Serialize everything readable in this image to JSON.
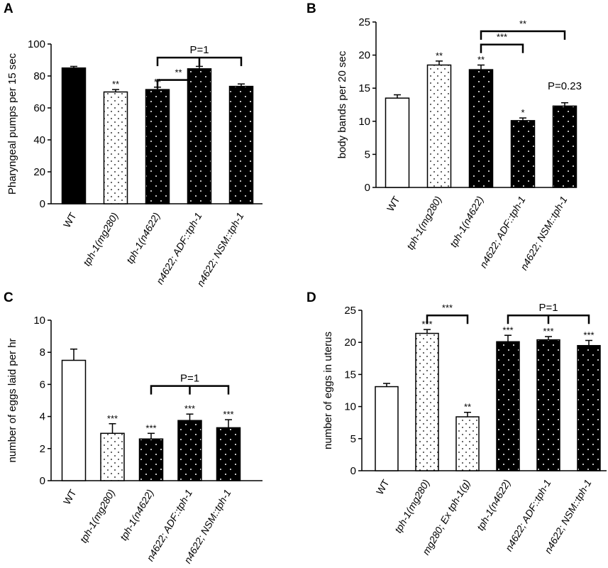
{
  "colors": {
    "black": "#000000",
    "white": "#ffffff"
  },
  "chart_data": [
    {
      "type": "bar",
      "panel": "A",
      "ylabel": "Pharyngeal pumps per 15 sec",
      "ylim": [
        0,
        100
      ],
      "yticks": [
        0,
        20,
        40,
        60,
        80,
        100
      ],
      "categories": [
        "WT",
        "tph-1(mg280)",
        "tph-1(n4622)",
        "n4622; ADF::tph-1",
        "n4622; NSM::tph-1"
      ],
      "italic_categories": [
        false,
        true,
        true,
        true,
        true
      ],
      "values": [
        85,
        70,
        71.5,
        84.5,
        73.5
      ],
      "errors": [
        1,
        1.5,
        1.5,
        1.5,
        1.5
      ],
      "fills": [
        "black",
        "dots-white",
        "dots-black",
        "dots-black",
        "dots-black"
      ],
      "significance": [
        "",
        "**",
        "**",
        "",
        ""
      ],
      "brackets": [
        {
          "from": 2,
          "to": 4,
          "middle": 3,
          "y": 91.5,
          "label": "P=1"
        },
        {
          "from": 2,
          "to": 3,
          "y": 77.5,
          "label": "**"
        }
      ]
    },
    {
      "type": "bar",
      "panel": "B",
      "ylabel": "body bands per 20 sec",
      "ylim": [
        0,
        25
      ],
      "yticks": [
        0,
        5,
        10,
        15,
        20,
        25
      ],
      "categories": [
        "WT",
        "tph-1(mg280)",
        "tph-1(n4622)",
        "n4622; ADF::tph-1",
        "n4622; NSM::tph-1"
      ],
      "italic_categories": [
        false,
        true,
        true,
        true,
        true
      ],
      "values": [
        13.5,
        18.5,
        17.8,
        10.1,
        12.3
      ],
      "errors": [
        0.5,
        0.6,
        0.7,
        0.4,
        0.5
      ],
      "fills": [
        "white",
        "dots-white",
        "dots-black",
        "dots-black",
        "dots-black"
      ],
      "significance": [
        "",
        "**",
        "**",
        "*",
        ""
      ],
      "brackets": [
        {
          "from": 2,
          "to": 4,
          "y": 23.6,
          "label": "**"
        },
        {
          "from": 2,
          "to": 3,
          "y": 21.6,
          "label": "***"
        }
      ],
      "annotations": [
        {
          "text": "P=0.23",
          "x": 4,
          "y": 14.8
        }
      ]
    },
    {
      "type": "bar",
      "panel": "C",
      "ylabel": "number of eggs laid per hr",
      "ylim": [
        0,
        10
      ],
      "yticks": [
        0,
        2,
        4,
        6,
        8,
        10
      ],
      "categories": [
        "WT",
        "tph-1(mg280)",
        "tph-1(n4622)",
        "n4622; ADF::tph-1",
        "n4622; NSM::tph-1"
      ],
      "italic_categories": [
        false,
        true,
        true,
        true,
        true
      ],
      "values": [
        7.5,
        2.95,
        2.6,
        3.75,
        3.3
      ],
      "errors": [
        0.7,
        0.6,
        0.35,
        0.4,
        0.5
      ],
      "fills": [
        "white",
        "dots-white",
        "dots-black",
        "dots-black",
        "dots-black"
      ],
      "significance": [
        "",
        "***",
        "***",
        "***",
        "***"
      ],
      "brackets": [
        {
          "from": 2,
          "to": 4,
          "middle": 3,
          "y": 5.9,
          "label": "P=1"
        }
      ]
    },
    {
      "type": "bar",
      "panel": "D",
      "ylabel": "number of eggs in uterus",
      "ylim": [
        0,
        25
      ],
      "yticks": [
        0,
        5,
        10,
        15,
        20,
        25
      ],
      "categories": [
        "WT",
        "tph-1(mg280)",
        "mg280; Ex tph-1(g)",
        "tph-1(n4622)",
        "n4622; ADF::tph-1",
        "n4622; NSM::tph-1"
      ],
      "italic_categories": [
        false,
        true,
        true,
        true,
        true,
        true
      ],
      "values": [
        13.1,
        21.4,
        8.4,
        20.1,
        20.4,
        19.5
      ],
      "errors": [
        0.5,
        0.6,
        0.7,
        1.0,
        0.5,
        0.8
      ],
      "fills": [
        "white",
        "dots-white",
        "dots-white",
        "dots-black",
        "dots-black",
        "dots-black"
      ],
      "significance": [
        "",
        "***",
        "**",
        "***",
        "***",
        "***"
      ],
      "brackets": [
        {
          "from": 1,
          "to": 2,
          "y": 24.2,
          "label": "***"
        },
        {
          "from": 3,
          "to": 5,
          "middle": 4,
          "y": 24.2,
          "label": "P=1"
        }
      ]
    }
  ]
}
